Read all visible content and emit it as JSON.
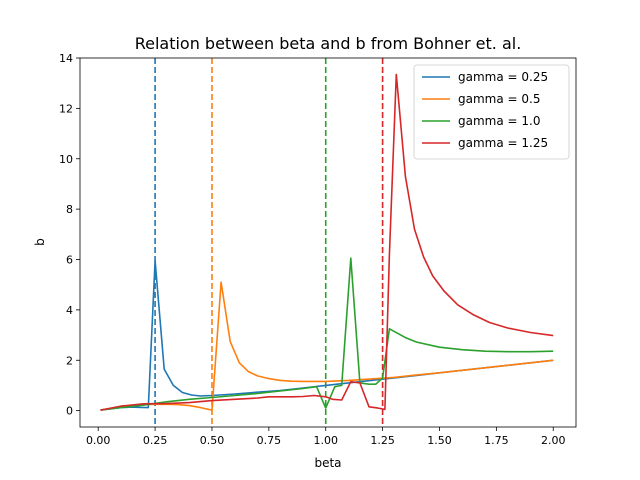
{
  "chart_data": {
    "type": "line",
    "title": "Relation between beta and b from Bohner et. al.",
    "xlabel": "beta",
    "ylabel": "b",
    "xlim": [
      -0.08,
      2.1
    ],
    "ylim": [
      -0.65,
      14
    ],
    "xticks": [
      "0.00",
      "0.25",
      "0.50",
      "0.75",
      "1.00",
      "1.25",
      "1.50",
      "1.75",
      "2.00"
    ],
    "yticks": [
      "0",
      "2",
      "4",
      "6",
      "8",
      "10",
      "12",
      "14"
    ],
    "xtick_values": [
      0,
      0.25,
      0.5,
      0.75,
      1.0,
      1.25,
      1.5,
      1.75,
      2.0
    ],
    "ytick_values": [
      0,
      2,
      4,
      6,
      8,
      10,
      12,
      14
    ],
    "grid": false,
    "legend_position": "top-right",
    "series": [
      {
        "name": "gamma = 0.25",
        "color": "#1f77b4",
        "vline": 0.25,
        "x": [
          0.01,
          0.05,
          0.1,
          0.15,
          0.19,
          0.22,
          0.25,
          0.29,
          0.33,
          0.37,
          0.41,
          0.45,
          0.5,
          0.6,
          0.7,
          0.8,
          0.9,
          1.0,
          1.1,
          1.2,
          1.3,
          1.4,
          1.5,
          1.6,
          1.7,
          1.8,
          1.9,
          2.0
        ],
        "y": [
          0.02,
          0.07,
          0.12,
          0.14,
          0.13,
          0.12,
          5.95,
          1.65,
          1.0,
          0.72,
          0.62,
          0.58,
          0.6,
          0.66,
          0.73,
          0.8,
          0.9,
          1.0,
          1.1,
          1.2,
          1.3,
          1.4,
          1.5,
          1.6,
          1.7,
          1.8,
          1.9,
          2.0
        ]
      },
      {
        "name": "gamma = 0.5",
        "color": "#ff7f0e",
        "vline": 0.5,
        "x": [
          0.01,
          0.05,
          0.1,
          0.15,
          0.2,
          0.25,
          0.3,
          0.35,
          0.4,
          0.45,
          0.5,
          0.54,
          0.58,
          0.62,
          0.66,
          0.7,
          0.75,
          0.8,
          0.85,
          0.9,
          1.0,
          1.1,
          1.2,
          1.3,
          1.4,
          1.5,
          1.6,
          1.7,
          1.8,
          1.9,
          2.0
        ],
        "y": [
          0.02,
          0.08,
          0.15,
          0.2,
          0.24,
          0.25,
          0.25,
          0.24,
          0.2,
          0.12,
          0.02,
          5.1,
          2.75,
          1.9,
          1.55,
          1.38,
          1.27,
          1.2,
          1.17,
          1.16,
          1.16,
          1.2,
          1.26,
          1.32,
          1.42,
          1.5,
          1.6,
          1.7,
          1.8,
          1.9,
          2.0
        ]
      },
      {
        "name": "gamma = 1.0",
        "color": "#2ca02c",
        "vline": 1.0,
        "x": [
          0.01,
          0.1,
          0.2,
          0.3,
          0.4,
          0.5,
          0.6,
          0.7,
          0.8,
          0.9,
          0.96,
          1.0,
          1.04,
          1.07,
          1.11,
          1.15,
          1.19,
          1.22,
          1.25,
          1.28,
          1.3,
          1.35,
          1.4,
          1.5,
          1.6,
          1.7,
          1.8,
          1.9,
          2.0
        ],
        "y": [
          0.02,
          0.12,
          0.22,
          0.35,
          0.45,
          0.52,
          0.6,
          0.68,
          0.78,
          0.88,
          0.95,
          0.1,
          0.95,
          1.0,
          6.05,
          1.1,
          1.05,
          1.05,
          1.3,
          3.25,
          3.15,
          2.9,
          2.72,
          2.52,
          2.42,
          2.36,
          2.34,
          2.34,
          2.36
        ]
      },
      {
        "name": "gamma = 1.25",
        "color": "#d62728",
        "vline": 1.25,
        "x": [
          0.01,
          0.1,
          0.2,
          0.3,
          0.4,
          0.5,
          0.6,
          0.7,
          0.75,
          0.8,
          0.85,
          0.9,
          0.95,
          1.0,
          1.03,
          1.07,
          1.11,
          1.15,
          1.19,
          1.23,
          1.26,
          1.28,
          1.31,
          1.35,
          1.39,
          1.43,
          1.47,
          1.52,
          1.58,
          1.65,
          1.72,
          1.8,
          1.9,
          2.0
        ],
        "y": [
          0.02,
          0.18,
          0.27,
          0.28,
          0.32,
          0.4,
          0.45,
          0.5,
          0.55,
          0.55,
          0.55,
          0.56,
          0.6,
          0.55,
          0.45,
          0.42,
          1.15,
          1.1,
          0.15,
          0.1,
          0.05,
          6.2,
          13.35,
          9.3,
          7.2,
          6.1,
          5.35,
          4.75,
          4.2,
          3.8,
          3.5,
          3.28,
          3.1,
          2.98
        ]
      }
    ]
  }
}
